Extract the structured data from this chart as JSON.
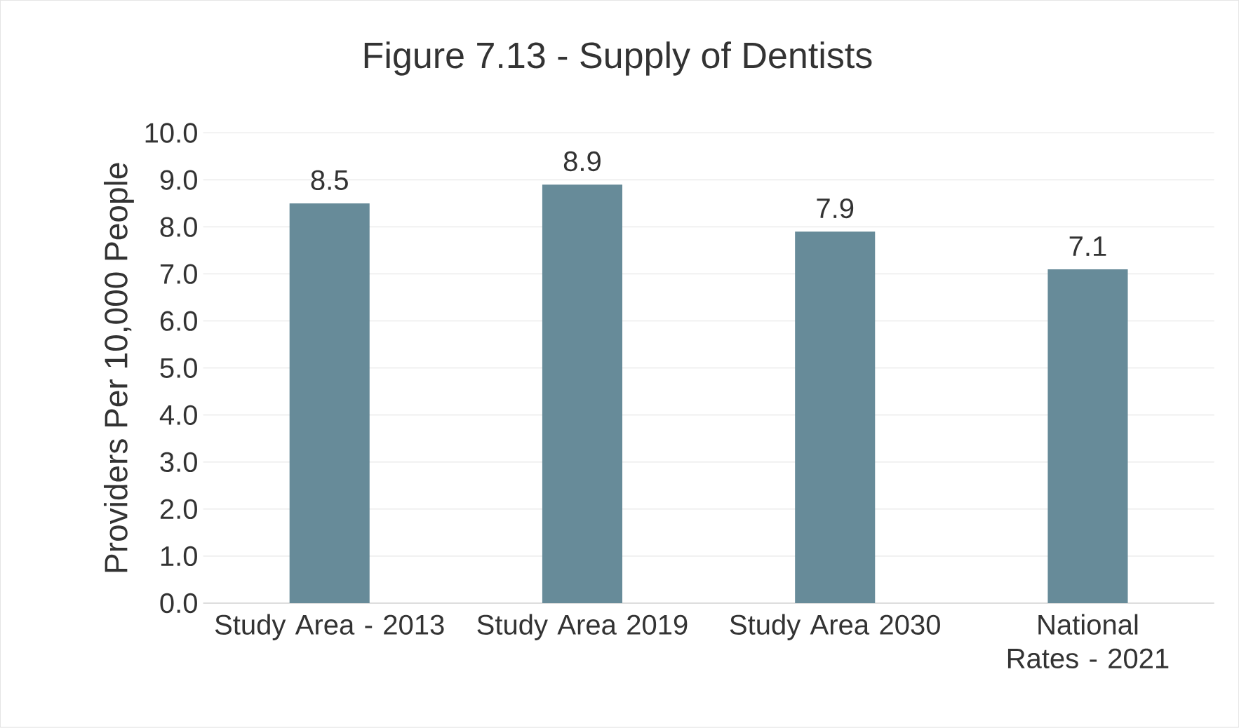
{
  "chart_data": {
    "type": "bar",
    "title": "Figure 7.13 - Supply of Dentists",
    "ylabel": "Providers Per 10,000 People",
    "categories": [
      "Study Area - 2013",
      "Study Area 2019",
      "Study Area 2030",
      "National Rates - 2021"
    ],
    "values": [
      8.5,
      8.9,
      7.9,
      7.1
    ],
    "color": "#678b99",
    "ylim": [
      0,
      10
    ],
    "yticks": [
      {
        "value": 0,
        "label": "0.0"
      },
      {
        "value": 1,
        "label": "1.0"
      },
      {
        "value": 2,
        "label": "2.0"
      },
      {
        "value": 3,
        "label": "3.0"
      },
      {
        "value": 4,
        "label": "4.0"
      },
      {
        "value": 5,
        "label": "5.0"
      },
      {
        "value": 6,
        "label": "6.0"
      },
      {
        "value": 7,
        "label": "7.0"
      },
      {
        "value": 8,
        "label": "8.0"
      },
      {
        "value": 9,
        "label": "9.0"
      },
      {
        "value": 10,
        "label": "10.0"
      }
    ],
    "grid": "y",
    "data_labels": true
  }
}
